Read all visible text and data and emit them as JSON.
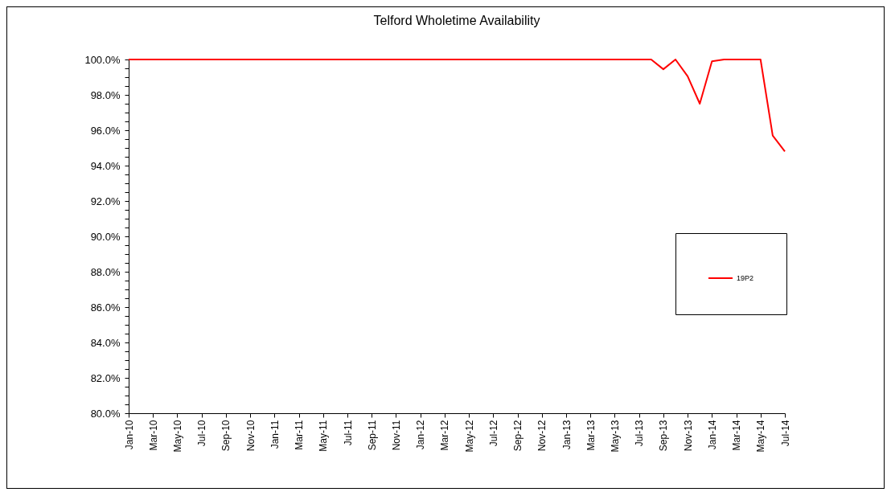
{
  "chart_data": {
    "type": "line",
    "title": "Telford Wholetime Availability",
    "categories": [
      "Jan-10",
      null,
      "Mar-10",
      null,
      "May-10",
      null,
      "Jul-10",
      null,
      "Sep-10",
      null,
      "Nov-10",
      null,
      "Jan-11",
      null,
      "Mar-11",
      null,
      "May-11",
      null,
      "Jul-11",
      null,
      "Sep-11",
      null,
      "Nov-11",
      null,
      "Jan-12",
      null,
      "Mar-12",
      null,
      "May-12",
      null,
      "Jul-12",
      null,
      "Sep-12",
      null,
      "Nov-12",
      null,
      "Jan-13",
      null,
      "Mar-13",
      null,
      "May-13",
      null,
      "Jul-13",
      null,
      "Sep-13",
      null,
      "Nov-13",
      null,
      "Jan-14",
      null,
      "Mar-14",
      null,
      "May-14",
      null,
      "Jul-14"
    ],
    "series": [
      {
        "name": "19P2",
        "color": "#ff0000",
        "values": [
          100,
          100,
          100,
          100,
          100,
          100,
          100,
          100,
          100,
          100,
          100,
          100,
          100,
          100,
          100,
          100,
          100,
          100,
          100,
          100,
          100,
          100,
          100,
          100,
          100,
          100,
          100,
          100,
          100,
          100,
          100,
          100,
          100,
          100,
          100,
          100,
          100,
          100,
          100,
          100,
          100,
          100,
          100,
          100,
          99.45,
          100,
          99.05,
          97.5,
          99.9,
          100,
          100,
          100,
          100,
          95.7,
          94.8
        ]
      }
    ],
    "ylim": [
      80,
      100
    ],
    "yticks": [
      {
        "value": 80,
        "label": "80.0%"
      },
      {
        "value": 80.5,
        "label": null
      },
      {
        "value": 81,
        "label": null
      },
      {
        "value": 81.5,
        "label": null
      },
      {
        "value": 82,
        "label": "82.0%"
      },
      {
        "value": 82.5,
        "label": null
      },
      {
        "value": 83,
        "label": null
      },
      {
        "value": 83.5,
        "label": null
      },
      {
        "value": 84,
        "label": "84.0%"
      },
      {
        "value": 84.5,
        "label": null
      },
      {
        "value": 85,
        "label": null
      },
      {
        "value": 85.5,
        "label": null
      },
      {
        "value": 86,
        "label": "86.0%"
      },
      {
        "value": 86.5,
        "label": null
      },
      {
        "value": 87,
        "label": null
      },
      {
        "value": 87.5,
        "label": null
      },
      {
        "value": 88,
        "label": "88.0%"
      },
      {
        "value": 88.5,
        "label": null
      },
      {
        "value": 89,
        "label": null
      },
      {
        "value": 89.5,
        "label": null
      },
      {
        "value": 90,
        "label": "90.0%"
      },
      {
        "value": 90.5,
        "label": null
      },
      {
        "value": 91,
        "label": null
      },
      {
        "value": 91.5,
        "label": null
      },
      {
        "value": 92,
        "label": "92.0%"
      },
      {
        "value": 92.5,
        "label": null
      },
      {
        "value": 93,
        "label": null
      },
      {
        "value": 93.5,
        "label": null
      },
      {
        "value": 94,
        "label": "94.0%"
      },
      {
        "value": 94.5,
        "label": null
      },
      {
        "value": 95,
        "label": null
      },
      {
        "value": 95.5,
        "label": null
      },
      {
        "value": 96,
        "label": "96.0%"
      },
      {
        "value": 96.5,
        "label": null
      },
      {
        "value": 97,
        "label": null
      },
      {
        "value": 97.5,
        "label": null
      },
      {
        "value": 98,
        "label": "98.0%"
      },
      {
        "value": 98.5,
        "label": null
      },
      {
        "value": 99,
        "label": null
      },
      {
        "value": 99.5,
        "label": null
      },
      {
        "value": 100,
        "label": "100.0%"
      }
    ],
    "grid": false,
    "legend": "right",
    "marker": "none",
    "line_style": "solid"
  }
}
